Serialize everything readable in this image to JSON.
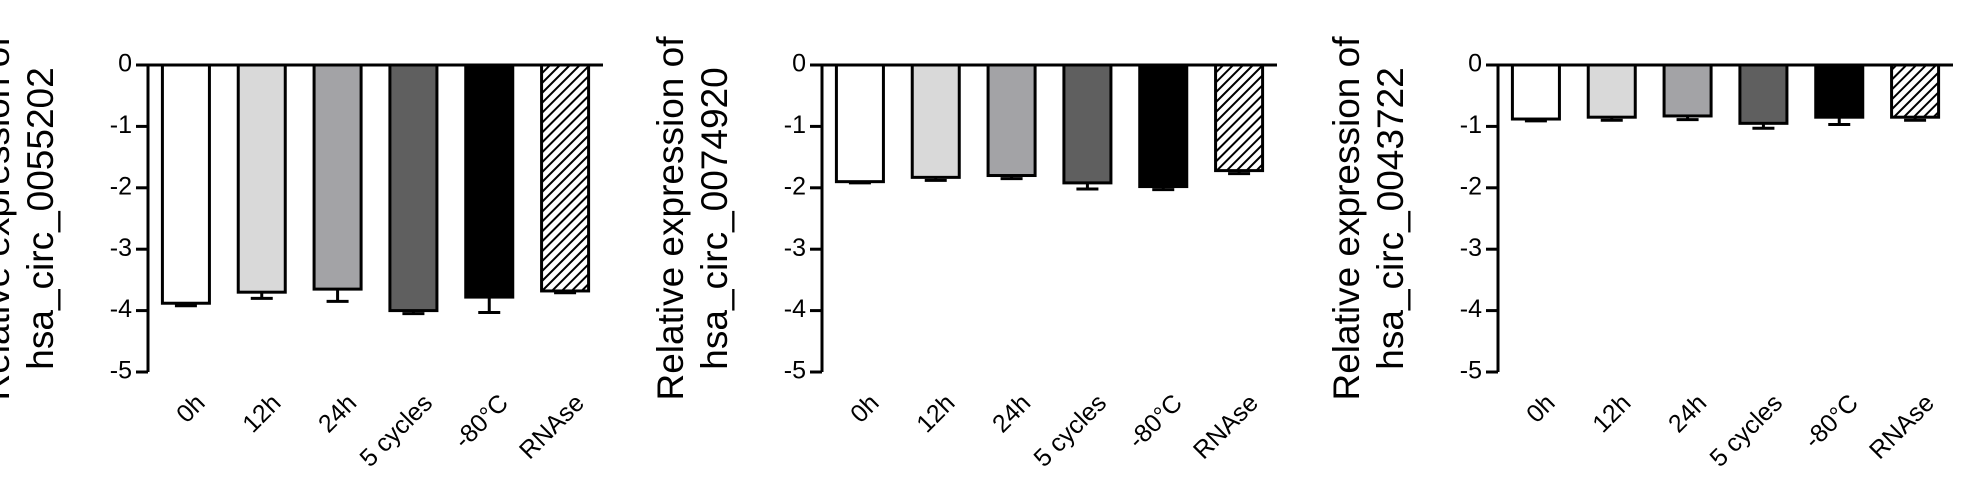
{
  "chart_data": [
    {
      "type": "bar",
      "ylabel": [
        "Relative expression of",
        "hsa_circ_0055202"
      ],
      "categories": [
        "0h",
        "12h",
        "24h",
        "5 cycles",
        "-80°C",
        "RNAse"
      ],
      "values": [
        -3.88,
        -3.7,
        -3.65,
        -4.0,
        -3.78,
        -3.68
      ],
      "errors": [
        0.04,
        0.1,
        0.2,
        0.05,
        0.25,
        0.03
      ],
      "colors": [
        "#ffffff",
        "#d9d9d9",
        "#a3a3a6",
        "#5f5f5f",
        "#000000",
        "#ffffff"
      ],
      "patterns": [
        "solid",
        "solid",
        "solid",
        "solid",
        "solid",
        "hatch"
      ],
      "ylim": [
        -5,
        0
      ],
      "yticks": [
        0,
        -1,
        -2,
        -3,
        -4,
        -5
      ]
    },
    {
      "type": "bar",
      "ylabel": [
        "Relative expression of",
        "hsa_circ_0074920"
      ],
      "categories": [
        "0h",
        "12h",
        "24h",
        "5 cycles",
        "-80°C",
        "RNAse"
      ],
      "values": [
        -1.9,
        -1.83,
        -1.8,
        -1.92,
        -1.98,
        -1.72
      ],
      "errors": [
        0.02,
        0.05,
        0.05,
        0.1,
        0.05,
        0.05
      ],
      "colors": [
        "#ffffff",
        "#d9d9d9",
        "#a3a3a6",
        "#5f5f5f",
        "#000000",
        "#ffffff"
      ],
      "patterns": [
        "solid",
        "solid",
        "solid",
        "solid",
        "solid",
        "hatch"
      ],
      "ylim": [
        -5,
        0
      ],
      "yticks": [
        0,
        -1,
        -2,
        -3,
        -4,
        -5
      ]
    },
    {
      "type": "bar",
      "ylabel": [
        "Relative expression of",
        "hsa_circ_0043722"
      ],
      "categories": [
        "0h",
        "12h",
        "24h",
        "5 cycles",
        "-80°C",
        "RNAse"
      ],
      "values": [
        -0.88,
        -0.85,
        -0.83,
        -0.95,
        -0.85,
        -0.85
      ],
      "errors": [
        0.03,
        0.05,
        0.06,
        0.08,
        0.12,
        0.05
      ],
      "colors": [
        "#ffffff",
        "#d9d9d9",
        "#a3a3a6",
        "#5f5f5f",
        "#000000",
        "#ffffff"
      ],
      "patterns": [
        "solid",
        "solid",
        "solid",
        "solid",
        "solid",
        "hatch"
      ],
      "ylim": [
        -5,
        0
      ],
      "yticks": [
        0,
        -1,
        -2,
        -3,
        -4,
        -5
      ]
    }
  ]
}
